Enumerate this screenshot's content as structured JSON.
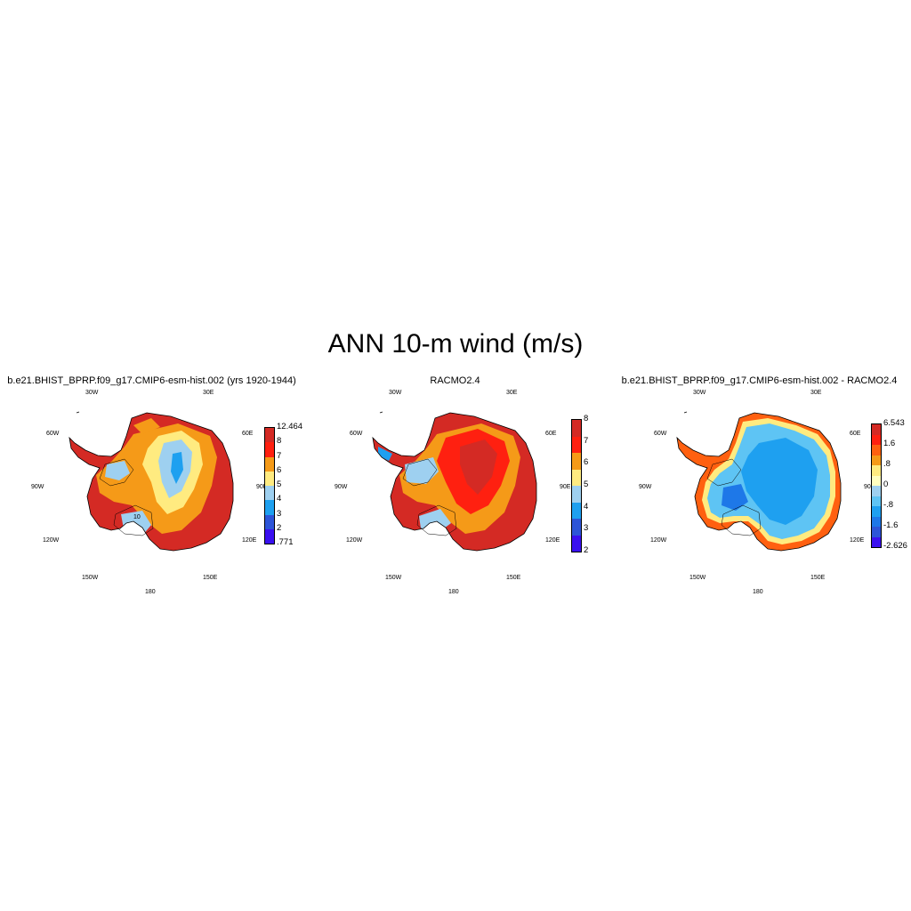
{
  "title": "ANN 10-m wind (m/s)",
  "panels": [
    {
      "title": "b.e21.BHIST_BPRP.f09_g17.CMIP6-esm-hist.002 (yrs 1920-1944)",
      "colors": [
        "#3a10f0",
        "#2d55d8",
        "#1ea0f0",
        "#9ed0f0",
        "#ffeb80",
        "#f59a18",
        "#ff2010",
        "#d42a24"
      ],
      "levels": [
        "12.464",
        "8",
        "7",
        "6",
        "5",
        "4",
        "3",
        "2",
        ".771"
      ],
      "kind": "model"
    },
    {
      "title": "RACMO2.4",
      "colors": [
        "#3a10f0",
        "#2d55d8",
        "#1ea0f0",
        "#9ed0f0",
        "#ffeb80",
        "#f59a18",
        "#ff2010",
        "#d42a24"
      ],
      "levels": [
        "8",
        "7",
        "6",
        "5",
        "4",
        "3",
        "2"
      ],
      "kind": "obs"
    },
    {
      "title": "b.e21.BHIST_BPRP.f09_g17.CMIP6-esm-hist.002 - RACMO2.4",
      "colors": [
        "#3a10f0",
        "#2d55d8",
        "#1e78e8",
        "#1ea0f0",
        "#5ec4f4",
        "#9ed0f0",
        "#ffffc0",
        "#ffeb80",
        "#f59a18",
        "#ff6010",
        "#ff2010",
        "#d42a24"
      ],
      "levels": [
        "6.543",
        "1.6",
        ".8",
        "0",
        "-.8",
        "-1.6",
        "-2.626"
      ],
      "kind": "diff"
    }
  ],
  "lon_labels": [
    "30W",
    "30E",
    "60W",
    "60E",
    "90W",
    "90E",
    "120W",
    "120E",
    "150W",
    "150E",
    "180"
  ],
  "contour_label": "10"
}
